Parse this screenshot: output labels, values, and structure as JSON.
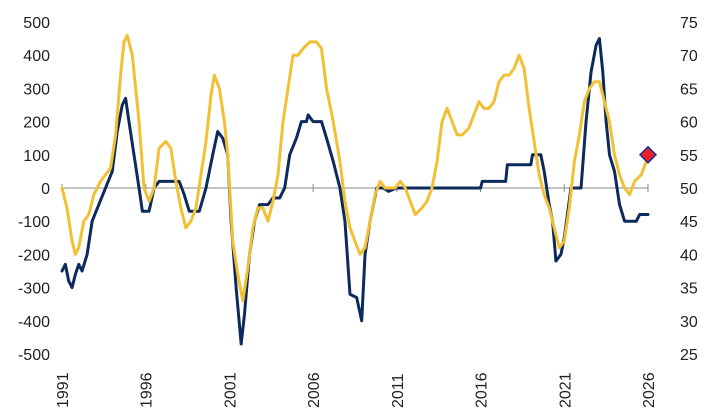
{
  "chart_data": {
    "type": "line",
    "x_range": [
      1991,
      2026
    ],
    "x_ticks": [
      "1991",
      "1996",
      "2001",
      "2006",
      "2011",
      "2016",
      "2021",
      "2026"
    ],
    "y_left": {
      "range": [
        -500,
        500
      ],
      "ticks": [
        "500",
        "400",
        "300",
        "200",
        "100",
        "0",
        "-100",
        "-200",
        "-300",
        "-400",
        "-500"
      ]
    },
    "y_right": {
      "range": [
        25,
        75
      ],
      "ticks": [
        "75",
        "70",
        "65",
        "60",
        "55",
        "50",
        "45",
        "40",
        "35",
        "30",
        "25"
      ]
    },
    "grid": false,
    "series": [
      {
        "axis": "left",
        "color": "#0d2a5c",
        "points": [
          [
            1991.0,
            -250
          ],
          [
            1991.2,
            -230
          ],
          [
            1991.4,
            -280
          ],
          [
            1991.6,
            -300
          ],
          [
            1991.8,
            -260
          ],
          [
            1992.0,
            -230
          ],
          [
            1992.2,
            -250
          ],
          [
            1992.5,
            -200
          ],
          [
            1992.8,
            -100
          ],
          [
            1993.2,
            -50
          ],
          [
            1993.6,
            0
          ],
          [
            1994.0,
            50
          ],
          [
            1994.3,
            170
          ],
          [
            1994.6,
            250
          ],
          [
            1994.8,
            270
          ],
          [
            1995.0,
            200
          ],
          [
            1995.3,
            100
          ],
          [
            1995.6,
            0
          ],
          [
            1995.8,
            -70
          ],
          [
            1996.2,
            -70
          ],
          [
            1996.5,
            0
          ],
          [
            1996.8,
            20
          ],
          [
            1997.5,
            20
          ],
          [
            1998.0,
            20
          ],
          [
            1998.3,
            -20
          ],
          [
            1998.6,
            -70
          ],
          [
            1999.2,
            -70
          ],
          [
            1999.6,
            0
          ],
          [
            2000.0,
            100
          ],
          [
            2000.3,
            170
          ],
          [
            2000.6,
            150
          ],
          [
            2000.9,
            100
          ],
          [
            2001.1,
            -100
          ],
          [
            2001.4,
            -300
          ],
          [
            2001.7,
            -470
          ],
          [
            2001.9,
            -380
          ],
          [
            2002.2,
            -200
          ],
          [
            2002.5,
            -100
          ],
          [
            2002.8,
            -50
          ],
          [
            2003.3,
            -50
          ],
          [
            2003.6,
            -30
          ],
          [
            2004.0,
            -30
          ],
          [
            2004.3,
            0
          ],
          [
            2004.6,
            100
          ],
          [
            2005.0,
            150
          ],
          [
            2005.3,
            200
          ],
          [
            2005.6,
            200
          ],
          [
            2005.7,
            220
          ],
          [
            2006.0,
            200
          ],
          [
            2006.5,
            200
          ],
          [
            2006.8,
            150
          ],
          [
            2007.2,
            80
          ],
          [
            2007.6,
            0
          ],
          [
            2007.9,
            -100
          ],
          [
            2008.2,
            -320
          ],
          [
            2008.6,
            -330
          ],
          [
            2008.9,
            -400
          ],
          [
            2009.1,
            -200
          ],
          [
            2009.4,
            -100
          ],
          [
            2009.6,
            -50
          ],
          [
            2009.8,
            0
          ],
          [
            2010.2,
            0
          ],
          [
            2010.5,
            -10
          ],
          [
            2011.0,
            0
          ],
          [
            2013.0,
            0
          ],
          [
            2015.0,
            0
          ],
          [
            2016.0,
            0
          ],
          [
            2016.1,
            20
          ],
          [
            2017.5,
            20
          ],
          [
            2017.6,
            70
          ],
          [
            2018.5,
            70
          ],
          [
            2019.0,
            70
          ],
          [
            2019.1,
            100
          ],
          [
            2019.6,
            100
          ],
          [
            2019.8,
            50
          ],
          [
            2020.1,
            -50
          ],
          [
            2020.3,
            -100
          ],
          [
            2020.5,
            -220
          ],
          [
            2020.8,
            -200
          ],
          [
            2021.0,
            -150
          ],
          [
            2021.4,
            0
          ],
          [
            2021.8,
            0
          ],
          [
            2022.0,
            0
          ],
          [
            2022.3,
            200
          ],
          [
            2022.6,
            350
          ],
          [
            2022.9,
            430
          ],
          [
            2023.1,
            450
          ],
          [
            2023.3,
            350
          ],
          [
            2023.5,
            200
          ],
          [
            2023.7,
            100
          ],
          [
            2024.0,
            50
          ],
          [
            2024.3,
            -50
          ],
          [
            2024.6,
            -100
          ],
          [
            2025.0,
            -100
          ],
          [
            2025.3,
            -100
          ],
          [
            2025.5,
            -80
          ],
          [
            2025.8,
            -80
          ],
          [
            2026.0,
            -80
          ]
        ]
      },
      {
        "axis": "right",
        "color": "#f2c035",
        "points": [
          [
            1991.0,
            50
          ],
          [
            1991.3,
            47
          ],
          [
            1991.6,
            42
          ],
          [
            1991.8,
            40
          ],
          [
            1992.0,
            41
          ],
          [
            1992.3,
            45
          ],
          [
            1992.6,
            46
          ],
          [
            1992.9,
            49
          ],
          [
            1993.3,
            51
          ],
          [
            1993.6,
            52
          ],
          [
            1993.9,
            53
          ],
          [
            1994.2,
            58
          ],
          [
            1994.5,
            67
          ],
          [
            1994.7,
            72
          ],
          [
            1994.9,
            73
          ],
          [
            1995.2,
            70
          ],
          [
            1995.6,
            60
          ],
          [
            1995.9,
            50
          ],
          [
            1996.2,
            48
          ],
          [
            1996.5,
            50
          ],
          [
            1996.8,
            56
          ],
          [
            1997.2,
            57
          ],
          [
            1997.5,
            56
          ],
          [
            1997.8,
            51
          ],
          [
            1998.1,
            47
          ],
          [
            1998.4,
            44
          ],
          [
            1998.7,
            45
          ],
          [
            1999.0,
            47
          ],
          [
            1999.3,
            52
          ],
          [
            1999.6,
            57
          ],
          [
            1999.9,
            64
          ],
          [
            2000.1,
            67
          ],
          [
            2000.4,
            65
          ],
          [
            2000.7,
            60
          ],
          [
            2000.9,
            55
          ],
          [
            2001.2,
            42
          ],
          [
            2001.5,
            37
          ],
          [
            2001.8,
            33
          ],
          [
            2002.1,
            38
          ],
          [
            2002.4,
            44
          ],
          [
            2002.7,
            47
          ],
          [
            2003.0,
            47
          ],
          [
            2003.3,
            45
          ],
          [
            2003.6,
            48
          ],
          [
            2003.9,
            52
          ],
          [
            2004.2,
            60
          ],
          [
            2004.5,
            65
          ],
          [
            2004.8,
            70
          ],
          [
            2005.1,
            70
          ],
          [
            2005.4,
            71
          ],
          [
            2005.8,
            72
          ],
          [
            2006.2,
            72
          ],
          [
            2006.5,
            71
          ],
          [
            2006.8,
            65
          ],
          [
            2007.2,
            60
          ],
          [
            2007.6,
            54
          ],
          [
            2007.9,
            48
          ],
          [
            2008.2,
            44
          ],
          [
            2008.5,
            42
          ],
          [
            2008.8,
            40
          ],
          [
            2009.1,
            41
          ],
          [
            2009.4,
            45
          ],
          [
            2009.7,
            49
          ],
          [
            2010.0,
            51
          ],
          [
            2010.3,
            50
          ],
          [
            2010.6,
            50
          ],
          [
            2010.9,
            50
          ],
          [
            2011.2,
            51
          ],
          [
            2011.5,
            50
          ],
          [
            2011.8,
            48
          ],
          [
            2012.1,
            46
          ],
          [
            2012.5,
            47
          ],
          [
            2012.8,
            48
          ],
          [
            2013.1,
            50
          ],
          [
            2013.4,
            54
          ],
          [
            2013.7,
            60
          ],
          [
            2014.0,
            62
          ],
          [
            2014.3,
            60
          ],
          [
            2014.6,
            58
          ],
          [
            2014.9,
            58
          ],
          [
            2015.3,
            59
          ],
          [
            2015.6,
            61
          ],
          [
            2015.9,
            63
          ],
          [
            2016.2,
            62
          ],
          [
            2016.5,
            62
          ],
          [
            2016.8,
            63
          ],
          [
            2017.1,
            66
          ],
          [
            2017.4,
            67
          ],
          [
            2017.7,
            67
          ],
          [
            2018.0,
            68
          ],
          [
            2018.3,
            70
          ],
          [
            2018.6,
            68
          ],
          [
            2018.9,
            62
          ],
          [
            2019.2,
            57
          ],
          [
            2019.5,
            52
          ],
          [
            2019.8,
            49
          ],
          [
            2020.1,
            47
          ],
          [
            2020.4,
            44
          ],
          [
            2020.7,
            41
          ],
          [
            2021.0,
            42
          ],
          [
            2021.3,
            47
          ],
          [
            2021.6,
            54
          ],
          [
            2021.9,
            58
          ],
          [
            2022.2,
            63
          ],
          [
            2022.5,
            65
          ],
          [
            2022.8,
            66
          ],
          [
            2023.1,
            66
          ],
          [
            2023.4,
            63
          ],
          [
            2023.7,
            60
          ],
          [
            2024.0,
            55
          ],
          [
            2024.3,
            52
          ],
          [
            2024.6,
            50
          ],
          [
            2024.9,
            49
          ],
          [
            2025.2,
            51
          ],
          [
            2025.6,
            52
          ],
          [
            2025.9,
            54
          ],
          [
            2026.0,
            55
          ]
        ]
      }
    ],
    "annotations": [
      {
        "type": "diamond-marker",
        "x": 2026.0,
        "axis": "right",
        "y": 55,
        "fill": "#e8202a",
        "stroke": "#1f2f8f"
      }
    ]
  }
}
